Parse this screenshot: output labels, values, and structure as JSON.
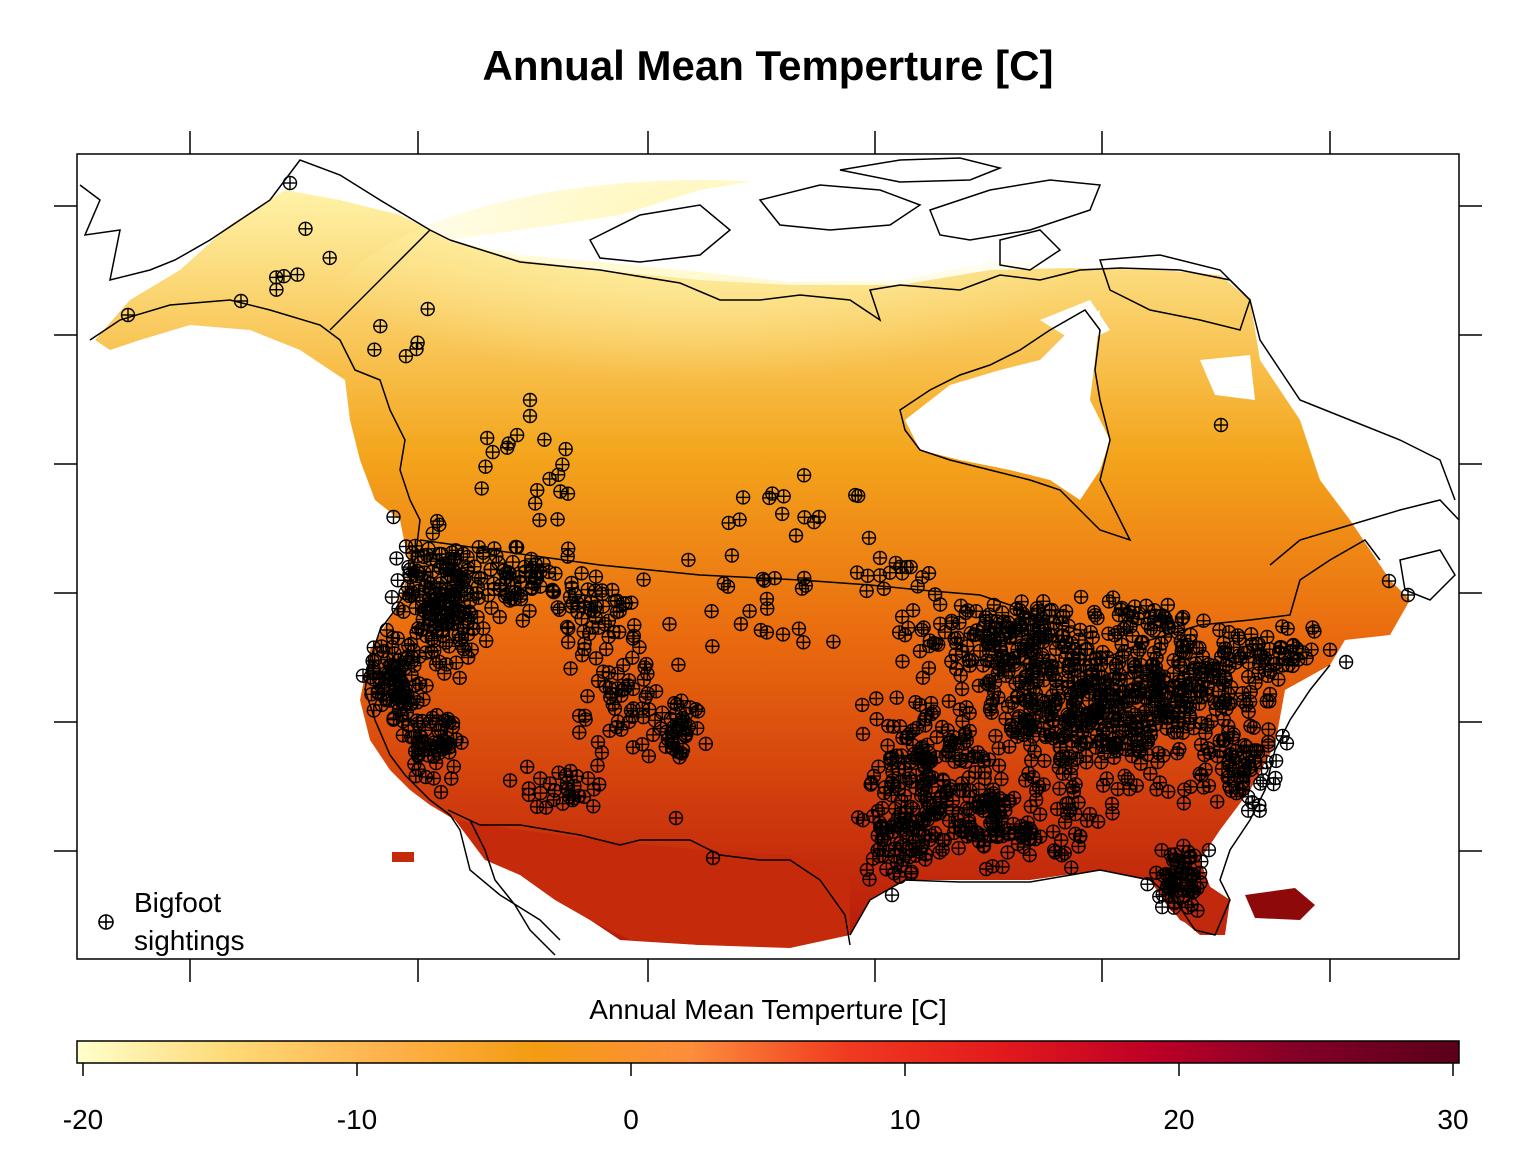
{
  "title": "Annual Mean Temperture [C]",
  "legend": {
    "label_line1": "Bigfoot",
    "label_line2": "sightings",
    "symbol": "circle-plus"
  },
  "colorkey": {
    "title": "Annual Mean Temperture [C]",
    "min": -20,
    "max": 30,
    "ticks": [
      "-20",
      "-10",
      "0",
      "10",
      "20",
      "30"
    ],
    "colors": [
      "#ffffcc",
      "#fed976",
      "#feb24c",
      "#f39c12",
      "#fd8d3c",
      "#f03b20",
      "#e31a1c",
      "#bd0026",
      "#800026",
      "#5a0018"
    ]
  },
  "map": {
    "raster_temperature_range_c": [
      -20,
      30
    ],
    "boundaries": [
      "coastline",
      "Canada-US border",
      "US-Mexico border"
    ],
    "point_layer": "Bigfoot sightings"
  }
}
